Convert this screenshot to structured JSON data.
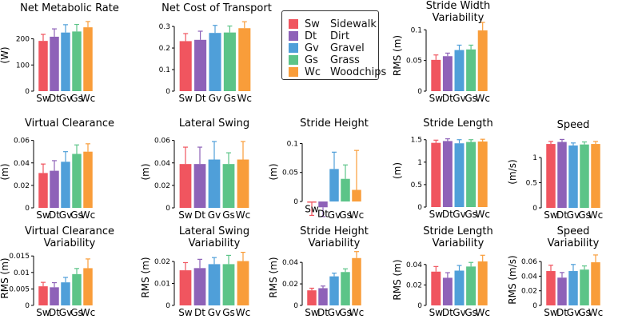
{
  "legend": [
    {
      "abbr": "Sw",
      "name": "Sidewalk",
      "color": "#F0555F"
    },
    {
      "abbr": "Dt",
      "name": "Dirt",
      "color": "#8E62B8"
    },
    {
      "abbr": "Gv",
      "name": "Gravel",
      "color": "#4F9FD9"
    },
    {
      "abbr": "Gs",
      "name": "Grass",
      "color": "#5CC488"
    },
    {
      "abbr": "Wc",
      "name": "Woodchips",
      "color": "#F99D3A"
    }
  ],
  "chart_data": [
    {
      "type": "bar",
      "id": "net-metabolic-rate",
      "title": [
        "Net Metabolic Rate"
      ],
      "ylabel": "(W)",
      "categories": [
        "Sw",
        "Dt",
        "Gv",
        "Gs",
        "Wc"
      ],
      "values": [
        192,
        208,
        224,
        228,
        244
      ],
      "errors": [
        25,
        30,
        30,
        27,
        22
      ],
      "ylim": [
        0,
        275
      ],
      "yticks": [
        0,
        100,
        200
      ],
      "ytick_labels": [
        "0",
        "100",
        "200"
      ]
    },
    {
      "type": "bar",
      "id": "net-cost-of-transport",
      "title": [
        "Net Cost of Transport"
      ],
      "ylabel": "",
      "categories": [
        "Sw",
        "Dt",
        "Gv",
        "Gs",
        "Wc"
      ],
      "values": [
        0.232,
        0.238,
        0.27,
        0.272,
        0.292
      ],
      "errors": [
        0.035,
        0.04,
        0.035,
        0.03,
        0.03
      ],
      "ylim": [
        0,
        0.33
      ],
      "yticks": [
        0,
        0.1,
        0.2,
        0.3
      ],
      "ytick_labels": [
        "0",
        "0.1",
        "0.2",
        "0.3"
      ]
    },
    {
      "type": "bar",
      "id": "stride-width-variability",
      "title": [
        "Stride Width",
        "Variability"
      ],
      "ylabel": "RMS (m)",
      "categories": [
        "Sw",
        "Dt",
        "Gv",
        "Gs",
        "Wc"
      ],
      "values": [
        0.051,
        0.057,
        0.067,
        0.068,
        0.099
      ],
      "errors": [
        0.008,
        0.005,
        0.008,
        0.007,
        0.013
      ],
      "ylim": [
        0,
        0.116
      ],
      "yticks": [
        0,
        0.05,
        0.1
      ],
      "ytick_labels": [
        "0",
        "0.05",
        "0.1"
      ]
    },
    {
      "type": "bar",
      "id": "virtual-clearance",
      "title": [
        "Virtual Clearance"
      ],
      "ylabel": "(m)",
      "categories": [
        "Sw",
        "Dt",
        "Gv",
        "Gs",
        "Wc"
      ],
      "values": [
        0.031,
        0.033,
        0.041,
        0.048,
        0.05
      ],
      "errors": [
        0.008,
        0.009,
        0.009,
        0.008,
        0.007
      ],
      "ylim": [
        0,
        0.064
      ],
      "yticks": [
        0,
        0.02,
        0.04,
        0.06
      ],
      "ytick_labels": [
        "0",
        "0.02",
        "0.04",
        "0.06"
      ]
    },
    {
      "type": "bar",
      "id": "lateral-swing",
      "title": [
        "Lateral Swing"
      ],
      "ylabel": "(m)",
      "categories": [
        "Sw",
        "Dt",
        "Gv",
        "Gs",
        "Wc"
      ],
      "values": [
        0.039,
        0.039,
        0.043,
        0.039,
        0.043
      ],
      "errors": [
        0.015,
        0.015,
        0.016,
        0.01,
        0.016
      ],
      "ylim": [
        0,
        0.064
      ],
      "yticks": [
        0,
        0.02,
        0.04,
        0.06
      ],
      "ytick_labels": [
        "0",
        "0.02",
        "0.04",
        "0.06"
      ]
    },
    {
      "type": "bar",
      "id": "stride-height",
      "title": [
        "Stride Height"
      ],
      "ylabel": "(m)",
      "categories": [
        "Sw",
        "Dt",
        "Gv",
        "Gs",
        "Wc"
      ],
      "values": [
        -0.002,
        -0.01,
        0.056,
        0.039,
        0.02
      ],
      "errors": [
        0.022,
        0.016,
        0.029,
        0.024,
        0.068
      ],
      "ylim": [
        -0.011,
        0.113
      ],
      "yticks": [
        0,
        0.05,
        0.1
      ],
      "ytick_labels": [
        "0",
        "0.05",
        "0.1"
      ]
    },
    {
      "type": "bar",
      "id": "stride-length",
      "title": [
        "Stride Length"
      ],
      "ylabel": "(m)",
      "categories": [
        "Sw",
        "Dt",
        "Gv",
        "Gs",
        "Wc"
      ],
      "values": [
        1.43,
        1.47,
        1.42,
        1.45,
        1.46
      ],
      "errors": [
        0.06,
        0.05,
        0.08,
        0.05,
        0.05
      ],
      "ylim": [
        0,
        1.62
      ],
      "yticks": [
        0,
        0.5,
        1,
        1.5
      ],
      "ytick_labels": [
        "0",
        "0.5",
        "1",
        "1.5"
      ]
    },
    {
      "type": "bar",
      "id": "speed",
      "title": [
        "Speed"
      ],
      "ylabel": "(m/s)",
      "categories": [
        "Sw",
        "Dt",
        "Gv",
        "Gs",
        "Wc"
      ],
      "values": [
        1.27,
        1.31,
        1.24,
        1.26,
        1.27
      ],
      "errors": [
        0.05,
        0.05,
        0.05,
        0.05,
        0.05
      ],
      "ylim": [
        0,
        1.43
      ],
      "yticks": [
        0,
        0.5,
        1
      ],
      "ytick_labels": [
        "0",
        "0.5",
        "1"
      ]
    },
    {
      "type": "bar",
      "id": "virtual-clearance-variability",
      "title": [
        "Virtual Clearance",
        "Variability"
      ],
      "ylabel": "RMS (m)",
      "categories": [
        "Sw",
        "Dt",
        "Gv",
        "Gs",
        "Wc"
      ],
      "values": [
        0.0058,
        0.0055,
        0.007,
        0.0095,
        0.0113
      ],
      "errors": [
        0.0012,
        0.0014,
        0.0015,
        0.0017,
        0.0028
      ],
      "ylim": [
        0,
        0.0165
      ],
      "yticks": [
        0,
        0.005,
        0.01,
        0.015
      ],
      "ytick_labels": [
        "0",
        "0.005",
        "0.01",
        "0.015"
      ]
    },
    {
      "type": "bar",
      "id": "lateral-swing-variability",
      "title": [
        "Lateral Swing",
        "Variability"
      ],
      "ylabel": "RMS (m)",
      "categories": [
        "Sw",
        "Dt",
        "Gv",
        "Gs",
        "Wc"
      ],
      "values": [
        0.016,
        0.017,
        0.0188,
        0.0188,
        0.0202
      ],
      "errors": [
        0.0035,
        0.004,
        0.003,
        0.004,
        0.004
      ],
      "ylim": [
        0,
        0.0255
      ],
      "yticks": [
        0,
        0.01,
        0.02
      ],
      "ytick_labels": [
        "0",
        "0.01",
        "0.02"
      ]
    },
    {
      "type": "bar",
      "id": "stride-height-variability",
      "title": [
        "Stride Height",
        "Variability"
      ],
      "ylabel": "RMS (m)",
      "categories": [
        "Sw",
        "Dt",
        "Gv",
        "Gs",
        "Wc"
      ],
      "values": [
        0.014,
        0.016,
        0.027,
        0.031,
        0.044
      ],
      "errors": [
        0.002,
        0.002,
        0.003,
        0.003,
        0.006
      ],
      "ylim": [
        0,
        0.052
      ],
      "yticks": [
        0,
        0.02,
        0.04
      ],
      "ytick_labels": [
        "0",
        "0.02",
        "0.04"
      ]
    },
    {
      "type": "bar",
      "id": "stride-length-variability",
      "title": [
        "Stride Length",
        "Variability"
      ],
      "ylabel": "RMS (m)",
      "categories": [
        "Sw",
        "Dt",
        "Gv",
        "Gs",
        "Wc"
      ],
      "values": [
        0.033,
        0.027,
        0.034,
        0.038,
        0.043
      ],
      "errors": [
        0.005,
        0.005,
        0.005,
        0.004,
        0.006
      ],
      "ylim": [
        0,
        0.05
      ],
      "yticks": [
        0,
        0.02,
        0.04
      ],
      "ytick_labels": [
        "0",
        "0.02",
        "0.04"
      ]
    },
    {
      "type": "bar",
      "id": "speed-variability",
      "title": [
        "Speed",
        "Variability"
      ],
      "ylabel": "RMS (m/s)",
      "categories": [
        "Sw",
        "Dt",
        "Gv",
        "Gs",
        "Wc"
      ],
      "values": [
        0.047,
        0.038,
        0.047,
        0.049,
        0.059
      ],
      "errors": [
        0.008,
        0.007,
        0.009,
        0.005,
        0.01
      ],
      "ylim": [
        0,
        0.07
      ],
      "yticks": [
        0,
        0.02,
        0.04,
        0.06
      ],
      "ytick_labels": [
        "0",
        "0.02",
        "0.04",
        "0.06"
      ]
    }
  ]
}
